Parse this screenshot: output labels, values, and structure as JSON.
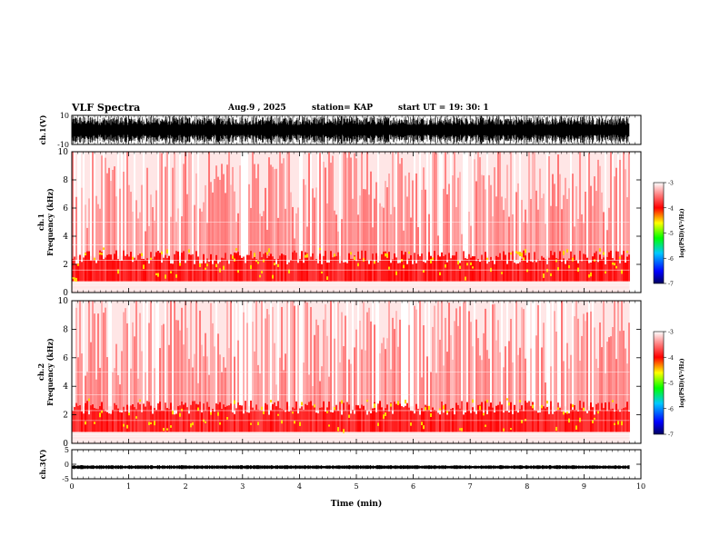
{
  "header": {
    "title": "VLF Spectra",
    "date": "Aug.9 , 2025",
    "station": "station= KAP",
    "start": "start UT = 19: 30: 1"
  },
  "colors": {
    "spectrogram_bg": "#ffffff",
    "low_power": "#ff3b3b",
    "mid_power": "#ff0000",
    "high_power": "#ffd400",
    "trace": "#000000"
  },
  "chart_data": [
    {
      "type": "line",
      "name": "ch1-waveform",
      "ylabel": "ch.1(V)",
      "ylim": [
        -10,
        10
      ],
      "yticks": [
        "10",
        "-10"
      ],
      "xlim": [
        0,
        10
      ]
    },
    {
      "type": "heatmap",
      "name": "ch1-spectrogram",
      "ylabel": "ch.1 Frequency (kHz)",
      "ylim": [
        0,
        10
      ],
      "yticks": [
        "0",
        "2",
        "4",
        "6",
        "8",
        "10"
      ],
      "xlim": [
        0,
        9.8
      ],
      "colorbar": {
        "label": "log(PSD)(V²/Hz)",
        "ticks": [
          "-3",
          "-4",
          "-5",
          "-6",
          "-7"
        ],
        "range": [
          -7,
          -3
        ]
      }
    },
    {
      "type": "heatmap",
      "name": "ch2-spectrogram",
      "ylabel": "ch.2 Frequency (kHz)",
      "ylim": [
        0,
        10
      ],
      "yticks": [
        "0",
        "2",
        "4",
        "6",
        "8",
        "10"
      ],
      "xlim": [
        0,
        9.8
      ],
      "colorbar": {
        "label": "log(PSD)(V²/Hz)",
        "ticks": [
          "-3",
          "-4",
          "-5",
          "-6",
          "-7"
        ],
        "range": [
          -7,
          -3
        ]
      }
    },
    {
      "type": "line",
      "name": "ch3-waveform",
      "ylabel": "ch.3(V)",
      "ylim": [
        -5,
        5
      ],
      "yticks": [
        "5",
        "0",
        "-5"
      ],
      "xlim": [
        0,
        10
      ],
      "xlabel": "Time (min)",
      "xticks": [
        "0",
        "1",
        "2",
        "3",
        "4",
        "5",
        "6",
        "7",
        "8",
        "9",
        "10"
      ]
    }
  ]
}
